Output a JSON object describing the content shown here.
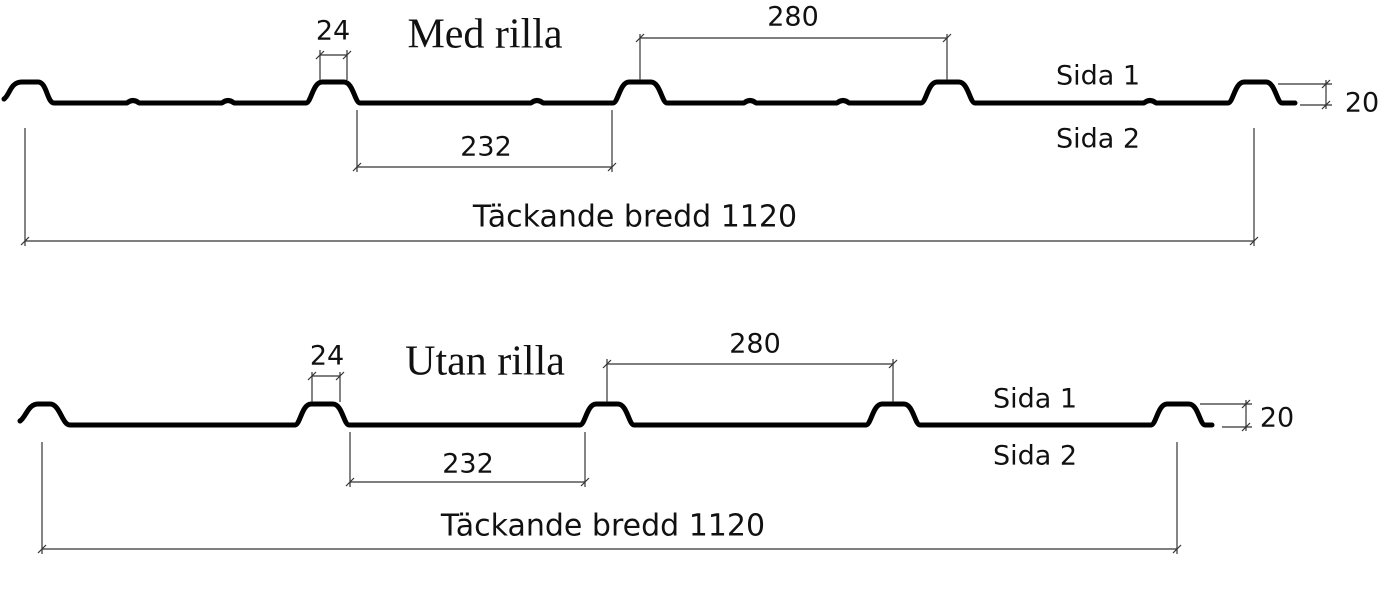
{
  "profiles": [
    {
      "title": "Med rilla",
      "rib_width": 24,
      "pitch": 280,
      "gap": 232,
      "height": 20,
      "cover_width": "Täckande bredd 1120",
      "side_1": "Sida 1",
      "side_2": "Sida 2"
    },
    {
      "title": "Utan rilla",
      "rib_width": 24,
      "pitch": 280,
      "gap": 232,
      "height": 20,
      "cover_width": "Täckande bredd 1120",
      "side_1": "Sida 1",
      "side_2": "Sida 2"
    }
  ]
}
